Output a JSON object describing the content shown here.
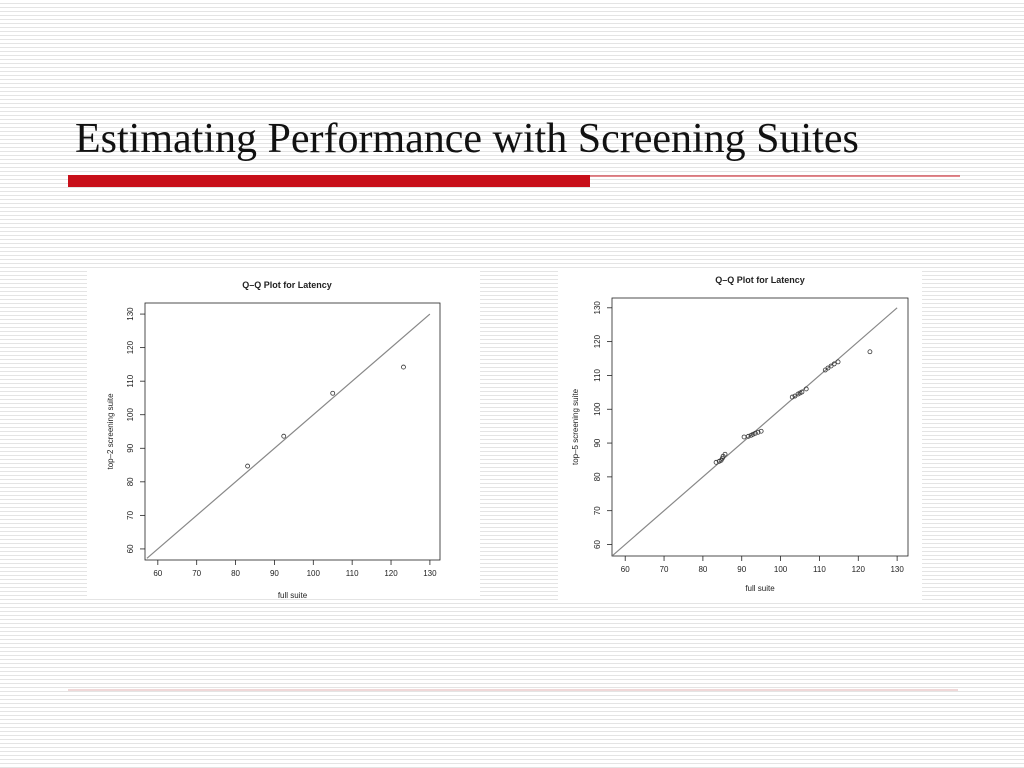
{
  "slide": {
    "title": "Estimating Performance with Screening Suites"
  },
  "chart_data": [
    {
      "type": "scatter",
      "title": "Q–Q Plot for Latency",
      "x_label": "full suite",
      "y_label": "top–2 screening suite",
      "color": "#333333",
      "x": [
        83.1,
        92.4,
        105.0,
        123.2
      ],
      "values": [
        84.7,
        93.6,
        106.4,
        114.2
      ],
      "reference_line": {
        "x": [
          57.2,
          130
        ],
        "y": [
          57.2,
          130
        ],
        "color": "#888888"
      },
      "xlim": [
        56.7,
        132.6
      ],
      "ylim": [
        56.7,
        133.3
      ],
      "xticks": [
        60,
        70,
        80,
        90,
        100,
        110,
        120,
        130
      ],
      "yticks": [
        60,
        70,
        80,
        90,
        100,
        110,
        120,
        130
      ]
    },
    {
      "type": "scatter",
      "title": "Q–Q Plot for Latency",
      "x_label": "full suite",
      "y_label": "top–5 screening suite",
      "color": "#333333",
      "x": [
        83.4,
        84.2,
        84.7,
        85.0,
        85.2,
        85.7,
        90.6,
        91.7,
        92.4,
        92.9,
        93.5,
        94.2,
        95.0,
        103.0,
        103.7,
        104.5,
        105.0,
        105.5,
        106.6,
        111.5,
        112.2,
        113.0,
        113.8,
        114.8,
        123.0
      ],
      "values": [
        84.3,
        84.6,
        84.9,
        85.5,
        86.1,
        86.7,
        91.8,
        92.0,
        92.3,
        92.6,
        92.9,
        93.2,
        93.5,
        103.6,
        103.9,
        104.5,
        104.8,
        105.1,
        106.0,
        111.6,
        112.2,
        112.8,
        113.4,
        114.0,
        117.0
      ],
      "reference_line": {
        "x": [
          56.7,
          130
        ],
        "y": [
          56.7,
          130
        ],
        "color": "#888888"
      },
      "xlim": [
        56.6,
        132.8
      ],
      "ylim": [
        56.6,
        132.9
      ],
      "xticks": [
        60,
        70,
        80,
        90,
        100,
        110,
        120,
        130
      ],
      "yticks": [
        60,
        70,
        80,
        90,
        100,
        110,
        120,
        130
      ]
    }
  ]
}
